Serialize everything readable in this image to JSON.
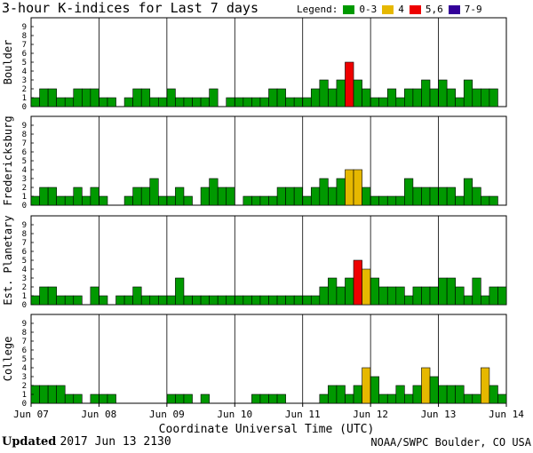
{
  "header": {
    "title": "3-hour K-indices for Last 7 days",
    "legend_label": "Legend:",
    "legend": [
      {
        "label": "0-3",
        "color": "#009900"
      },
      {
        "label": "4",
        "color": "#e6b800"
      },
      {
        "label": "5,6",
        "color": "#ee0000"
      },
      {
        "label": "7-9",
        "color": "#330099"
      }
    ]
  },
  "chart_data": [
    {
      "type": "bar",
      "ylabel": "Boulder",
      "ylim": [
        0,
        9
      ],
      "values": [
        1,
        2,
        2,
        1,
        1,
        2,
        2,
        2,
        1,
        1,
        0,
        1,
        2,
        2,
        1,
        1,
        2,
        1,
        1,
        1,
        1,
        2,
        0,
        1,
        1,
        1,
        1,
        1,
        2,
        2,
        1,
        1,
        1,
        2,
        3,
        2,
        3,
        5,
        3,
        2,
        1,
        1,
        2,
        1,
        2,
        2,
        3,
        2,
        3,
        2,
        1,
        3,
        2,
        2,
        2,
        0
      ]
    },
    {
      "type": "bar",
      "ylabel": "Fredericksburg",
      "ylim": [
        0,
        9
      ],
      "values": [
        1,
        2,
        2,
        1,
        1,
        2,
        1,
        2,
        1,
        0,
        0,
        1,
        2,
        2,
        3,
        1,
        1,
        2,
        1,
        0,
        2,
        3,
        2,
        2,
        0,
        1,
        1,
        1,
        1,
        2,
        2,
        2,
        1,
        2,
        3,
        2,
        3,
        4,
        4,
        2,
        1,
        1,
        1,
        1,
        3,
        2,
        2,
        2,
        2,
        2,
        1,
        3,
        2,
        1,
        1,
        0
      ]
    },
    {
      "type": "bar",
      "ylabel": "Est. Planetary",
      "ylim": [
        0,
        9
      ],
      "values": [
        1,
        2,
        2,
        1,
        1,
        1,
        0,
        2,
        1,
        0,
        1,
        1,
        2,
        1,
        1,
        1,
        1,
        3,
        1,
        1,
        1,
        1,
        1,
        1,
        1,
        1,
        1,
        1,
        1,
        1,
        1,
        1,
        1,
        1,
        2,
        3,
        2,
        3,
        5,
        4,
        3,
        2,
        2,
        2,
        1,
        2,
        2,
        2,
        3,
        3,
        2,
        1,
        3,
        1,
        2,
        2
      ]
    },
    {
      "type": "bar",
      "ylabel": "College",
      "ylim": [
        0,
        9
      ],
      "values": [
        2,
        2,
        2,
        2,
        1,
        1,
        0,
        1,
        1,
        1,
        0,
        0,
        0,
        0,
        0,
        0,
        1,
        1,
        1,
        0,
        1,
        0,
        0,
        0,
        0,
        0,
        1,
        1,
        1,
        1,
        0,
        0,
        0,
        0,
        1,
        2,
        2,
        1,
        2,
        4,
        3,
        1,
        1,
        2,
        1,
        2,
        4,
        3,
        2,
        2,
        2,
        1,
        1,
        4,
        2,
        1
      ]
    }
  ],
  "axes": {
    "yticks": [
      "0",
      "1",
      "2",
      "3",
      "4",
      "5",
      "6",
      "7",
      "8",
      "9"
    ],
    "xticks": [
      "Jun 07",
      "Jun 08",
      "Jun 09",
      "Jun 10",
      "Jun 11",
      "Jun 12",
      "Jun 13",
      "Jun 14"
    ],
    "xtitle": "Coordinate Universal Time (UTC)"
  },
  "footer": {
    "updated_label": "Updated",
    "updated_value": "2017 Jun 13 2130",
    "credit": "NOAA/SWPC Boulder, CO USA"
  }
}
